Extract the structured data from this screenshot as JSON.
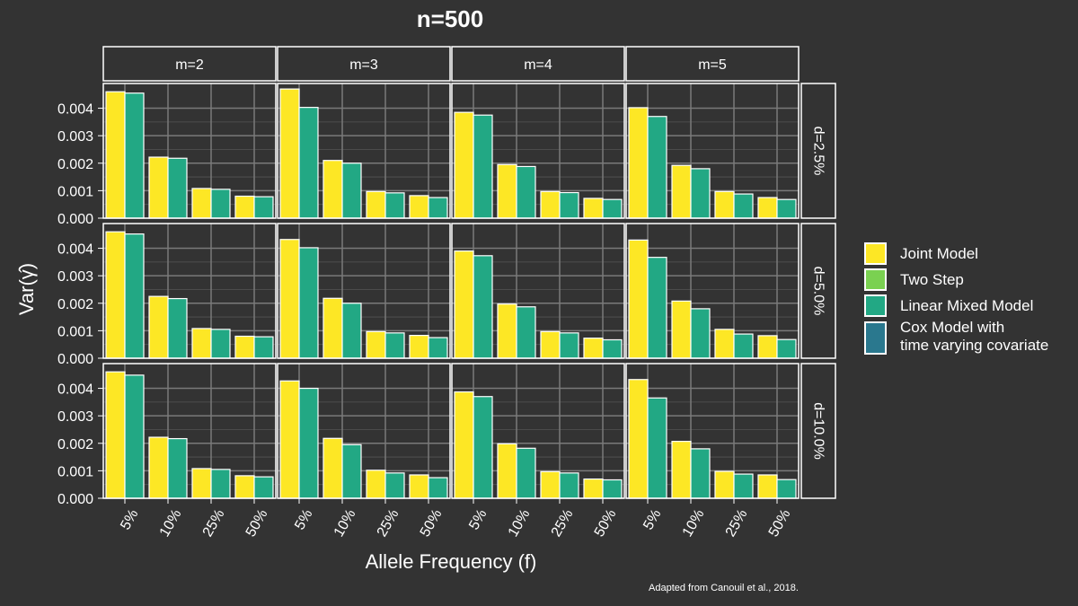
{
  "chart_data": {
    "type": "bar",
    "title": "n=500",
    "xlabel": "Allele Frequency (f)",
    "ylabel": "Var(γ̂)",
    "caption": "Adapted from Canouil et al., 2018.",
    "categories": [
      "5%",
      "10%",
      "25%",
      "50%"
    ],
    "column_facets": [
      "m=2",
      "m=3",
      "m=4",
      "m=5"
    ],
    "row_facets": [
      "d=2.5%",
      "d=5.0%",
      "d=10.0%"
    ],
    "ylim": [
      0,
      0.0049
    ],
    "yticks": [
      "0.000",
      "0.001",
      "0.002",
      "0.003",
      "0.004"
    ],
    "ytick_values": [
      0,
      0.001,
      0.002,
      0.003,
      0.004
    ],
    "grid": true,
    "legend_position": "right",
    "legend": [
      {
        "name": "Joint Model",
        "color": "#FDE725"
      },
      {
        "name": "Two Step",
        "color": "#7AD151"
      },
      {
        "name": "Linear Mixed Model",
        "color": "#22A884"
      },
      {
        "name": "Cox Model with",
        "name_line2": "time varying covariate",
        "color": "#2A788E"
      }
    ],
    "panels": [
      [
        {
          "series": [
            {
              "name": "Joint Model",
              "values": [
                0.0046,
                0.00222,
                0.00108,
                0.0008
              ]
            },
            {
              "name": "Linear Mixed Model",
              "values": [
                0.00455,
                0.00218,
                0.00105,
                0.00078
              ]
            }
          ]
        },
        {
          "series": [
            {
              "name": "Joint Model",
              "values": [
                0.0047,
                0.0021,
                0.00097,
                0.00082
              ]
            },
            {
              "name": "Linear Mixed Model",
              "values": [
                0.00403,
                0.002,
                0.00092,
                0.00075
              ]
            }
          ]
        },
        {
          "series": [
            {
              "name": "Joint Model",
              "values": [
                0.00385,
                0.00195,
                0.00097,
                0.00072
              ]
            },
            {
              "name": "Linear Mixed Model",
              "values": [
                0.00375,
                0.00188,
                0.00093,
                0.00068
              ]
            }
          ]
        },
        {
          "series": [
            {
              "name": "Joint Model",
              "values": [
                0.00402,
                0.00192,
                0.00097,
                0.00075
              ]
            },
            {
              "name": "Linear Mixed Model",
              "values": [
                0.0037,
                0.0018,
                0.00088,
                0.00068
              ]
            }
          ]
        }
      ],
      [
        {
          "series": [
            {
              "name": "Joint Model",
              "values": [
                0.0046,
                0.00225,
                0.00108,
                0.0008
              ]
            },
            {
              "name": "Linear Mixed Model",
              "values": [
                0.00452,
                0.00217,
                0.00105,
                0.00078
              ]
            }
          ]
        },
        {
          "series": [
            {
              "name": "Joint Model",
              "values": [
                0.00432,
                0.00218,
                0.00097,
                0.00083
              ]
            },
            {
              "name": "Linear Mixed Model",
              "values": [
                0.00402,
                0.002,
                0.00092,
                0.00075
              ]
            }
          ]
        },
        {
          "series": [
            {
              "name": "Joint Model",
              "values": [
                0.0039,
                0.00197,
                0.00097,
                0.00073
              ]
            },
            {
              "name": "Linear Mixed Model",
              "values": [
                0.00373,
                0.00187,
                0.00092,
                0.00067
              ]
            }
          ]
        },
        {
          "series": [
            {
              "name": "Joint Model",
              "values": [
                0.0043,
                0.00208,
                0.00105,
                0.00082
              ]
            },
            {
              "name": "Linear Mixed Model",
              "values": [
                0.00367,
                0.0018,
                0.00088,
                0.00068
              ]
            }
          ]
        }
      ],
      [
        {
          "series": [
            {
              "name": "Joint Model",
              "values": [
                0.0046,
                0.00222,
                0.00108,
                0.00082
              ]
            },
            {
              "name": "Linear Mixed Model",
              "values": [
                0.00448,
                0.00217,
                0.00105,
                0.00078
              ]
            }
          ]
        },
        {
          "series": [
            {
              "name": "Joint Model",
              "values": [
                0.00427,
                0.00218,
                0.00102,
                0.00085
              ]
            },
            {
              "name": "Linear Mixed Model",
              "values": [
                0.004,
                0.00195,
                0.00092,
                0.00075
              ]
            }
          ]
        },
        {
          "series": [
            {
              "name": "Joint Model",
              "values": [
                0.00387,
                0.00198,
                0.00097,
                0.0007
              ]
            },
            {
              "name": "Linear Mixed Model",
              "values": [
                0.0037,
                0.00182,
                0.00092,
                0.00067
              ]
            }
          ]
        },
        {
          "series": [
            {
              "name": "Joint Model",
              "values": [
                0.00432,
                0.00207,
                0.00098,
                0.00085
              ]
            },
            {
              "name": "Linear Mixed Model",
              "values": [
                0.00365,
                0.0018,
                0.00088,
                0.00068
              ]
            }
          ]
        }
      ]
    ]
  }
}
